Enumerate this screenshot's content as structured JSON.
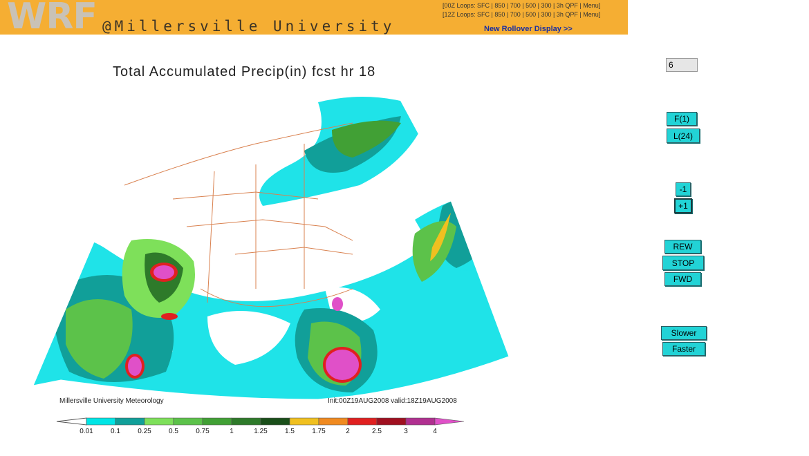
{
  "header": {
    "logo": "WRF",
    "affiliation": "@Millersville University",
    "loops_00z": {
      "prefix": "[00Z Loops:",
      "links": [
        "SFC",
        "850",
        "700",
        "500",
        "300",
        "3h QPF",
        "Menu"
      ]
    },
    "loops_12z": {
      "prefix": "[12Z Loops:",
      "links": [
        "SFC",
        "850",
        "700",
        "500",
        "300",
        "3h QPF",
        "Menu"
      ]
    },
    "rollover_link": "New Rollover Display >>"
  },
  "map": {
    "title": "Total Accumulated Precip(in) fcst hr 18",
    "credit": "Millersville University Meteorology",
    "init_valid": "Init:00Z19AUG2008 valid:18Z19AUG2008",
    "colorbar": {
      "labels": [
        "0.01",
        "0.1",
        "0.25",
        "0.5",
        "0.75",
        "1",
        "1.25",
        "1.5",
        "1.75",
        "2",
        "2.5",
        "3",
        "4"
      ],
      "colors": [
        "#00e5e5",
        "#119f99",
        "#7ee05a",
        "#5cc24a",
        "#41a035",
        "#2e7a2a",
        "#1a4f1a",
        "#f0c020",
        "#f08a20",
        "#e02020",
        "#a01020",
        "#b03090",
        "#e050c8"
      ]
    }
  },
  "controls": {
    "frame_value": "6",
    "first_label": "F(1)",
    "last_label": "L(24)",
    "minus_label": "-1",
    "plus_label": "+1",
    "rew_label": "REW",
    "stop_label": "STOP",
    "fwd_label": "FWD",
    "slower_label": "Slower",
    "faster_label": "Faster"
  }
}
